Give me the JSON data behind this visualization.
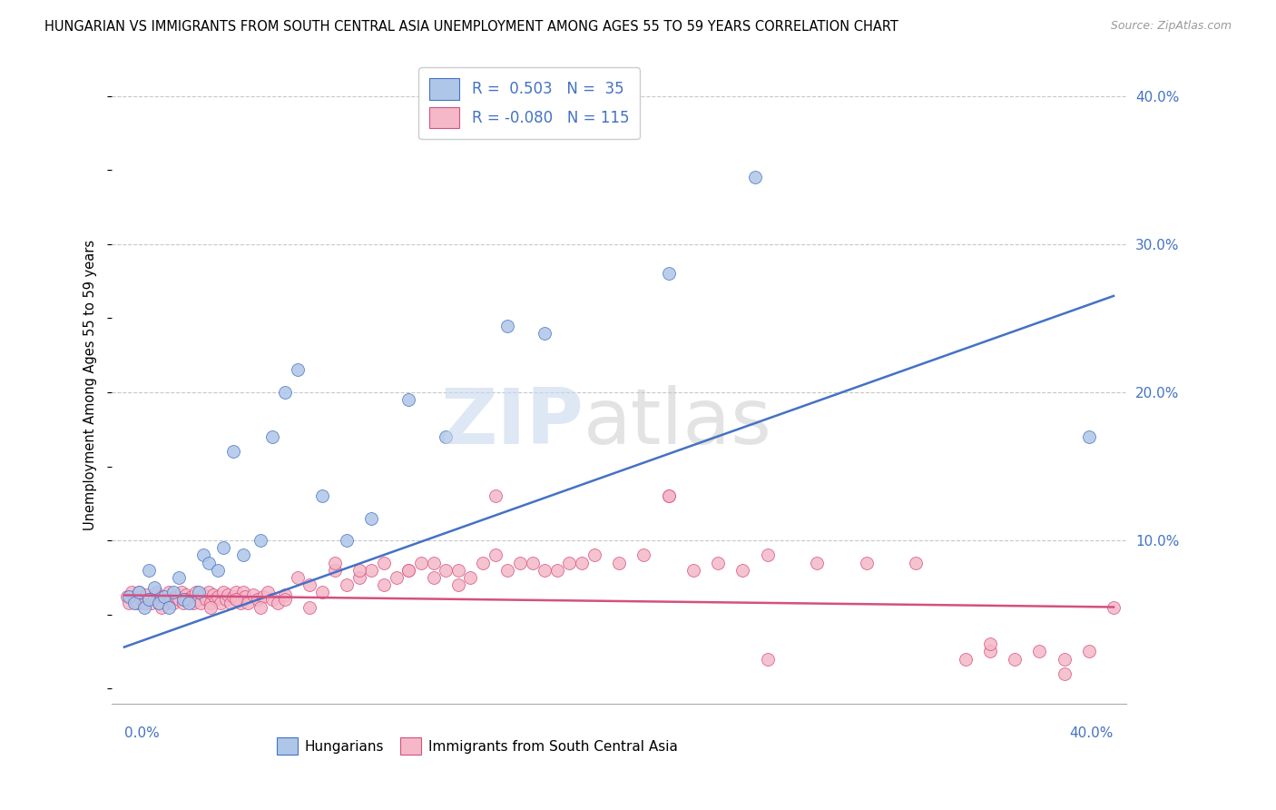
{
  "title": "HUNGARIAN VS IMMIGRANTS FROM SOUTH CENTRAL ASIA UNEMPLOYMENT AMONG AGES 55 TO 59 YEARS CORRELATION CHART",
  "source": "Source: ZipAtlas.com",
  "ylabel": "Unemployment Among Ages 55 to 59 years",
  "xlim": [
    0.0,
    0.4
  ],
  "ylim": [
    0.0,
    0.42
  ],
  "yticks": [
    0.1,
    0.2,
    0.3,
    0.4
  ],
  "ytick_labels": [
    "10.0%",
    "20.0%",
    "30.0%",
    "40.0%"
  ],
  "legend_r_hungarian": "0.503",
  "legend_n_hungarian": "35",
  "legend_r_immigrant": "-0.080",
  "legend_n_immigrant": "115",
  "hungarian_color": "#aec6e8",
  "immigrant_color": "#f4b8c8",
  "hungarian_line_color": "#4472c4",
  "immigrant_line_color": "#d45080",
  "blue_line_y_start": 0.028,
  "blue_line_y_end": 0.265,
  "pink_line_y_start": 0.063,
  "pink_line_y_end": 0.055,
  "hun_x": [
    0.002,
    0.004,
    0.006,
    0.008,
    0.01,
    0.012,
    0.014,
    0.016,
    0.018,
    0.02,
    0.022,
    0.024,
    0.026,
    0.03,
    0.032,
    0.034,
    0.038,
    0.04,
    0.044,
    0.048,
    0.055,
    0.06,
    0.065,
    0.07,
    0.08,
    0.09,
    0.1,
    0.115,
    0.13,
    0.155,
    0.17,
    0.22,
    0.255,
    0.39,
    0.01
  ],
  "hun_y": [
    0.062,
    0.058,
    0.065,
    0.055,
    0.06,
    0.068,
    0.058,
    0.062,
    0.055,
    0.065,
    0.075,
    0.06,
    0.058,
    0.065,
    0.09,
    0.085,
    0.08,
    0.095,
    0.16,
    0.09,
    0.1,
    0.17,
    0.2,
    0.215,
    0.13,
    0.1,
    0.115,
    0.195,
    0.17,
    0.245,
    0.24,
    0.28,
    0.345,
    0.17,
    0.08
  ],
  "imm_x": [
    0.001,
    0.002,
    0.003,
    0.004,
    0.005,
    0.006,
    0.007,
    0.008,
    0.009,
    0.01,
    0.011,
    0.012,
    0.013,
    0.014,
    0.015,
    0.016,
    0.017,
    0.018,
    0.019,
    0.02,
    0.021,
    0.022,
    0.023,
    0.024,
    0.025,
    0.026,
    0.027,
    0.028,
    0.029,
    0.03,
    0.031,
    0.032,
    0.033,
    0.034,
    0.035,
    0.036,
    0.037,
    0.038,
    0.039,
    0.04,
    0.041,
    0.042,
    0.043,
    0.044,
    0.045,
    0.046,
    0.047,
    0.048,
    0.049,
    0.05,
    0.052,
    0.054,
    0.056,
    0.058,
    0.06,
    0.062,
    0.065,
    0.07,
    0.075,
    0.08,
    0.085,
    0.09,
    0.095,
    0.1,
    0.105,
    0.11,
    0.115,
    0.12,
    0.125,
    0.13,
    0.135,
    0.14,
    0.15,
    0.16,
    0.17,
    0.18,
    0.19,
    0.2,
    0.21,
    0.22,
    0.23,
    0.24,
    0.25,
    0.26,
    0.28,
    0.3,
    0.32,
    0.34,
    0.35,
    0.36,
    0.37,
    0.38,
    0.39,
    0.4,
    0.015,
    0.025,
    0.035,
    0.045,
    0.055,
    0.065,
    0.075,
    0.085,
    0.095,
    0.105,
    0.115,
    0.125,
    0.135,
    0.145,
    0.155,
    0.165,
    0.175,
    0.185,
    0.15,
    0.22,
    0.26,
    0.35,
    0.38
  ],
  "imm_y": [
    0.062,
    0.058,
    0.065,
    0.06,
    0.058,
    0.065,
    0.06,
    0.058,
    0.063,
    0.06,
    0.058,
    0.062,
    0.065,
    0.058,
    0.062,
    0.06,
    0.058,
    0.065,
    0.06,
    0.058,
    0.062,
    0.06,
    0.065,
    0.058,
    0.063,
    0.06,
    0.062,
    0.058,
    0.065,
    0.06,
    0.058,
    0.063,
    0.06,
    0.065,
    0.058,
    0.063,
    0.06,
    0.062,
    0.058,
    0.065,
    0.06,
    0.063,
    0.058,
    0.062,
    0.065,
    0.06,
    0.058,
    0.065,
    0.062,
    0.058,
    0.063,
    0.06,
    0.062,
    0.065,
    0.06,
    0.058,
    0.063,
    0.075,
    0.07,
    0.065,
    0.08,
    0.07,
    0.075,
    0.08,
    0.07,
    0.075,
    0.08,
    0.085,
    0.075,
    0.08,
    0.07,
    0.075,
    0.09,
    0.085,
    0.08,
    0.085,
    0.09,
    0.085,
    0.09,
    0.13,
    0.08,
    0.085,
    0.08,
    0.09,
    0.085,
    0.085,
    0.085,
    0.02,
    0.025,
    0.02,
    0.025,
    0.02,
    0.025,
    0.055,
    0.055,
    0.06,
    0.055,
    0.06,
    0.055,
    0.06,
    0.055,
    0.085,
    0.08,
    0.085,
    0.08,
    0.085,
    0.08,
    0.085,
    0.08,
    0.085,
    0.08,
    0.085,
    0.13,
    0.13,
    0.02,
    0.03,
    0.01
  ]
}
